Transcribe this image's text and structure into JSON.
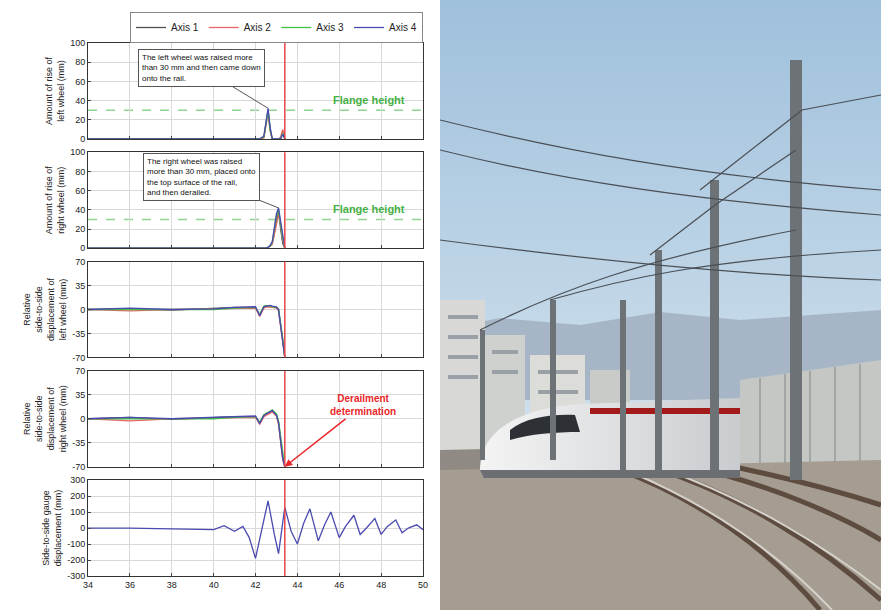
{
  "chart_data": [
    {
      "type": "line",
      "ylabel": "Amount of rise of left wheel (mm)",
      "x": [
        34,
        36,
        38,
        40,
        41,
        42,
        42.2,
        42.4,
        42.5,
        42.6,
        42.7,
        42.8,
        43.0,
        43.1,
        43.2,
        43.3,
        43.4
      ],
      "xlim": [
        34,
        50
      ],
      "xticks": [
        34,
        36,
        38,
        40,
        42,
        44,
        46,
        48,
        50
      ],
      "ylim": [
        0,
        100
      ],
      "yticks": [
        0,
        20,
        40,
        60,
        80,
        100
      ],
      "grid": true,
      "tick_labels": "y",
      "legend": "top right",
      "flange_height": 30,
      "flange_label": "Flange height",
      "annotation": "The left wheel was raised more than 30 mm and then came down onto the rail.",
      "vline_x": 43.4,
      "series": [
        {
          "name": "Axis 1",
          "color": "#505050",
          "values": [
            0,
            0,
            0,
            0,
            0,
            0,
            0,
            2,
            15,
            30,
            10,
            0,
            0,
            0,
            0,
            8,
            0
          ]
        },
        {
          "name": "Axis 2",
          "color": "#e8656a",
          "values": [
            0,
            0,
            0,
            0,
            0,
            0,
            0,
            1,
            12,
            27,
            8,
            0,
            0,
            0,
            2,
            10,
            0
          ]
        },
        {
          "name": "Axis 3",
          "color": "#44c044",
          "values": [
            0,
            0,
            0,
            0,
            0,
            0,
            0,
            2,
            14,
            29,
            9,
            0,
            0,
            0,
            0,
            6,
            0
          ]
        },
        {
          "name": "Axis 4",
          "color": "#4a4ab0",
          "values": [
            0,
            0,
            0,
            0,
            0,
            0,
            0,
            3,
            18,
            32,
            12,
            0,
            0,
            0,
            0,
            5,
            0
          ]
        }
      ]
    },
    {
      "type": "line",
      "ylabel": "Amount of rise of right wheel (mm)",
      "x": [
        34,
        36,
        38,
        40,
        41,
        42,
        42.2,
        42.4,
        42.5,
        42.6,
        42.7,
        42.8,
        43.0,
        43.1,
        43.2,
        43.3,
        43.4
      ],
      "xlim": [
        34,
        50
      ],
      "xticks": [
        34,
        36,
        38,
        40,
        42,
        44,
        46,
        48,
        50
      ],
      "ylim": [
        0,
        100
      ],
      "yticks": [
        0,
        20,
        40,
        60,
        80,
        100
      ],
      "grid": true,
      "tick_labels": "y",
      "flange_height": 30,
      "flange_label": "Flange height",
      "annotation": "The right wheel was raised more than 30 mm, placed onto the top surface of the rail, and then derailed.",
      "vline_x": 43.4,
      "series": [
        {
          "name": "Axis 1",
          "color": "#505050",
          "values": [
            0,
            0,
            0,
            0,
            0,
            0,
            0,
            0,
            0,
            1,
            2,
            5,
            30,
            38,
            20,
            5,
            0
          ]
        },
        {
          "name": "Axis 2",
          "color": "#e8656a",
          "values": [
            0,
            0,
            0,
            0,
            0,
            0,
            0,
            0,
            0,
            1,
            2,
            4,
            25,
            35,
            25,
            8,
            0
          ]
        },
        {
          "name": "Axis 3",
          "color": "#44c044",
          "values": [
            0,
            0,
            0,
            0,
            0,
            0,
            0,
            0,
            0,
            1,
            2,
            6,
            33,
            40,
            22,
            10,
            0
          ]
        },
        {
          "name": "Axis 4",
          "color": "#4a4ab0",
          "values": [
            0,
            0,
            0,
            0,
            0,
            0,
            0,
            0,
            0,
            1,
            3,
            7,
            36,
            42,
            28,
            12,
            0
          ]
        }
      ]
    },
    {
      "type": "line",
      "ylabel": "Relative side-to-side displacement of left wheel (mm)",
      "x": [
        34,
        36,
        38,
        40,
        41,
        42,
        42.2,
        42.4,
        42.5,
        42.6,
        42.7,
        42.8,
        43.0,
        43.1,
        43.2,
        43.3,
        43.4
      ],
      "xlim": [
        34,
        50
      ],
      "xticks": [
        34,
        36,
        38,
        40,
        42,
        44,
        46,
        48,
        50
      ],
      "ylim": [
        -70,
        70
      ],
      "yticks": [
        -70,
        -35,
        0,
        35,
        70
      ],
      "grid": true,
      "tick_labels": "y",
      "vline_x": 43.4,
      "series": [
        {
          "name": "Axis 1",
          "color": "#505050",
          "values": [
            0,
            1,
            -1,
            2,
            3,
            3,
            -8,
            4,
            5,
            5,
            5,
            4,
            3,
            0,
            -20,
            -45,
            -70
          ]
        },
        {
          "name": "Axis 2",
          "color": "#e8656a",
          "values": [
            0,
            -2,
            0,
            1,
            2,
            2,
            -10,
            2,
            4,
            4,
            4,
            3,
            2,
            -2,
            -25,
            -50,
            -70
          ]
        },
        {
          "name": "Axis 3",
          "color": "#44c044",
          "values": [
            0,
            0,
            1,
            0,
            2,
            3,
            -7,
            5,
            6,
            6,
            5,
            4,
            3,
            1,
            -18,
            -42,
            -70
          ]
        },
        {
          "name": "Axis 4",
          "color": "#4a4ab0",
          "values": [
            0,
            2,
            0,
            1,
            3,
            4,
            -9,
            4,
            5,
            6,
            6,
            5,
            4,
            0,
            -22,
            -48,
            -70
          ]
        }
      ]
    },
    {
      "type": "line",
      "ylabel": "Relative side-to-side displacement of right wheel (mm)",
      "x": [
        34,
        36,
        38,
        40,
        41,
        42,
        42.2,
        42.4,
        42.5,
        42.6,
        42.7,
        42.8,
        43.0,
        43.1,
        43.2,
        43.3,
        43.4
      ],
      "xlim": [
        34,
        50
      ],
      "xticks": [
        34,
        36,
        38,
        40,
        42,
        44,
        46,
        48,
        50
      ],
      "ylim": [
        -70,
        70
      ],
      "yticks": [
        -70,
        -35,
        0,
        35,
        70
      ],
      "grid": true,
      "tick_labels": "y",
      "annotation": "Derailment determination",
      "vline_x": 43.4,
      "series": [
        {
          "name": "Axis 1",
          "color": "#505050",
          "values": [
            0,
            2,
            -1,
            2,
            3,
            3,
            -6,
            5,
            7,
            8,
            10,
            12,
            6,
            -5,
            -30,
            -55,
            -70
          ]
        },
        {
          "name": "Axis 2",
          "color": "#e8656a",
          "values": [
            0,
            -3,
            0,
            1,
            2,
            2,
            -8,
            3,
            5,
            6,
            8,
            10,
            4,
            -8,
            -35,
            -60,
            -70
          ]
        },
        {
          "name": "Axis 3",
          "color": "#44c044",
          "values": [
            0,
            0,
            1,
            0,
            2,
            3,
            -5,
            6,
            8,
            9,
            11,
            13,
            7,
            -3,
            -28,
            -52,
            -70
          ]
        },
        {
          "name": "Axis 4",
          "color": "#4a4ab0",
          "values": [
            0,
            2,
            0,
            2,
            3,
            4,
            -7,
            5,
            7,
            8,
            10,
            12,
            5,
            -6,
            -32,
            -58,
            -70
          ]
        }
      ]
    },
    {
      "type": "line",
      "ylabel": "Side-to-side gauge displacement (mm)",
      "x": [
        34,
        36,
        38,
        40,
        40.5,
        41,
        41.4,
        41.7,
        42.0,
        42.3,
        42.6,
        42.9,
        43.1,
        43.4,
        43.7,
        44.0,
        44.3,
        44.6,
        45.0,
        45.3,
        45.6,
        46.0,
        46.3,
        46.7,
        47.0,
        47.3,
        47.7,
        48.0,
        48.3,
        48.7,
        49.0,
        49.3,
        49.7,
        50
      ],
      "xlim": [
        34,
        50
      ],
      "xticks": [
        34,
        36,
        38,
        40,
        42,
        44,
        46,
        48,
        50
      ],
      "ylim": [
        -300,
        300
      ],
      "yticks": [
        -300,
        -200,
        -100,
        0,
        100,
        200,
        300
      ],
      "grid": true,
      "vline_x": 43.4,
      "series": [
        {
          "name": "Axis 4",
          "color": "#4a4ab0",
          "values": [
            0,
            0,
            -5,
            -10,
            15,
            -20,
            10,
            -60,
            -190,
            -20,
            170,
            -40,
            -160,
            130,
            -20,
            -100,
            30,
            120,
            -80,
            20,
            100,
            -60,
            10,
            80,
            -40,
            0,
            60,
            -40,
            10,
            50,
            -30,
            0,
            20,
            -10
          ]
        }
      ]
    }
  ]
}
